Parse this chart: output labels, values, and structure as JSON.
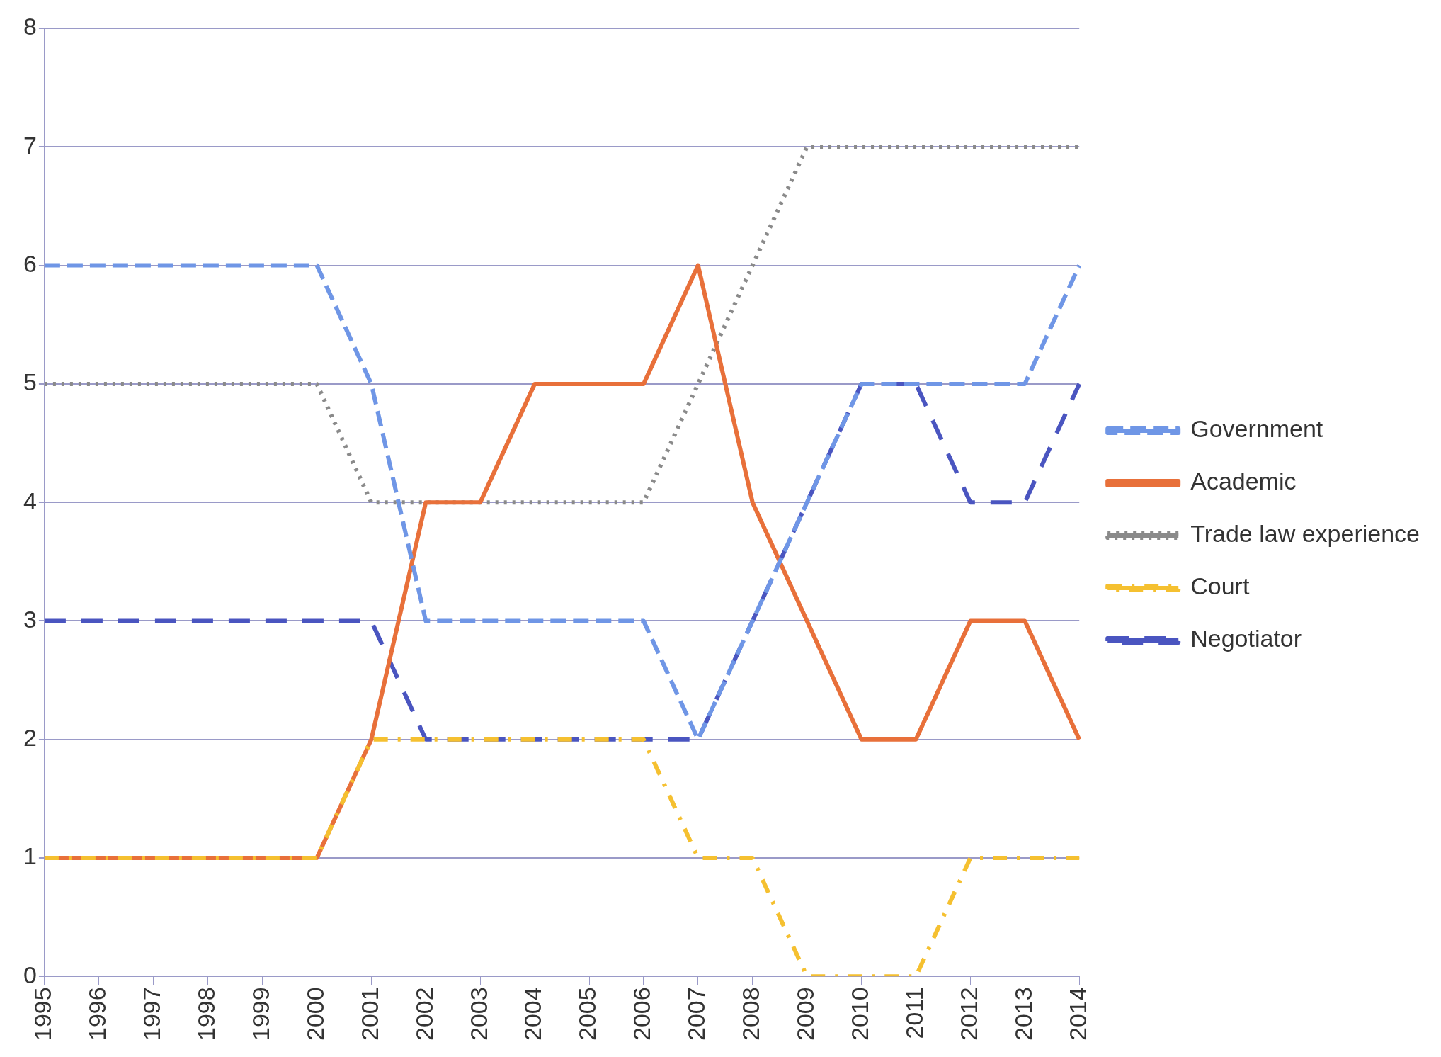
{
  "chart_data": {
    "type": "line",
    "categories": [
      "1995",
      "1996",
      "1997",
      "1998",
      "1999",
      "2000",
      "2001",
      "2002",
      "2003",
      "2004",
      "2005",
      "2006",
      "2007",
      "2008",
      "2009",
      "2010",
      "2011",
      "2012",
      "2013",
      "2014"
    ],
    "series": [
      {
        "name": "Government",
        "color": "#6f96e6",
        "line_style": "dashed",
        "values": [
          6,
          6,
          6,
          6,
          6,
          6,
          5,
          3,
          3,
          3,
          3,
          3,
          2,
          3,
          4,
          5,
          5,
          5,
          5,
          6
        ]
      },
      {
        "name": "Academic",
        "color": "#e8703a",
        "line_style": "solid",
        "values": [
          1,
          1,
          1,
          1,
          1,
          1,
          2,
          4,
          4,
          5,
          5,
          5,
          6,
          4,
          3,
          2,
          2,
          3,
          3,
          2
        ]
      },
      {
        "name": "Trade law experience",
        "color": "#8a8a8a",
        "line_style": "dotted",
        "values": [
          5,
          5,
          5,
          5,
          5,
          5,
          4,
          4,
          4,
          4,
          4,
          4,
          5,
          6,
          7,
          7,
          7,
          7,
          7,
          7
        ]
      },
      {
        "name": "Court",
        "color": "#f5c030",
        "line_style": "dashdot",
        "values": [
          1,
          1,
          1,
          1,
          1,
          1,
          2,
          2,
          2,
          2,
          2,
          2,
          1,
          1,
          0,
          0,
          0,
          1,
          1,
          1
        ]
      },
      {
        "name": "Negotiator",
        "color": "#4a55c0",
        "line_style": "longdash",
        "values": [
          3,
          3,
          3,
          3,
          3,
          3,
          3,
          2,
          2,
          2,
          2,
          2,
          2,
          3,
          4,
          5,
          5,
          4,
          4,
          5
        ]
      }
    ],
    "ylim": [
      0,
      8
    ],
    "yticks": [
      0,
      1,
      2,
      3,
      4,
      5,
      6,
      7,
      8
    ],
    "grid": "y",
    "legend": "right",
    "marker": "none"
  }
}
